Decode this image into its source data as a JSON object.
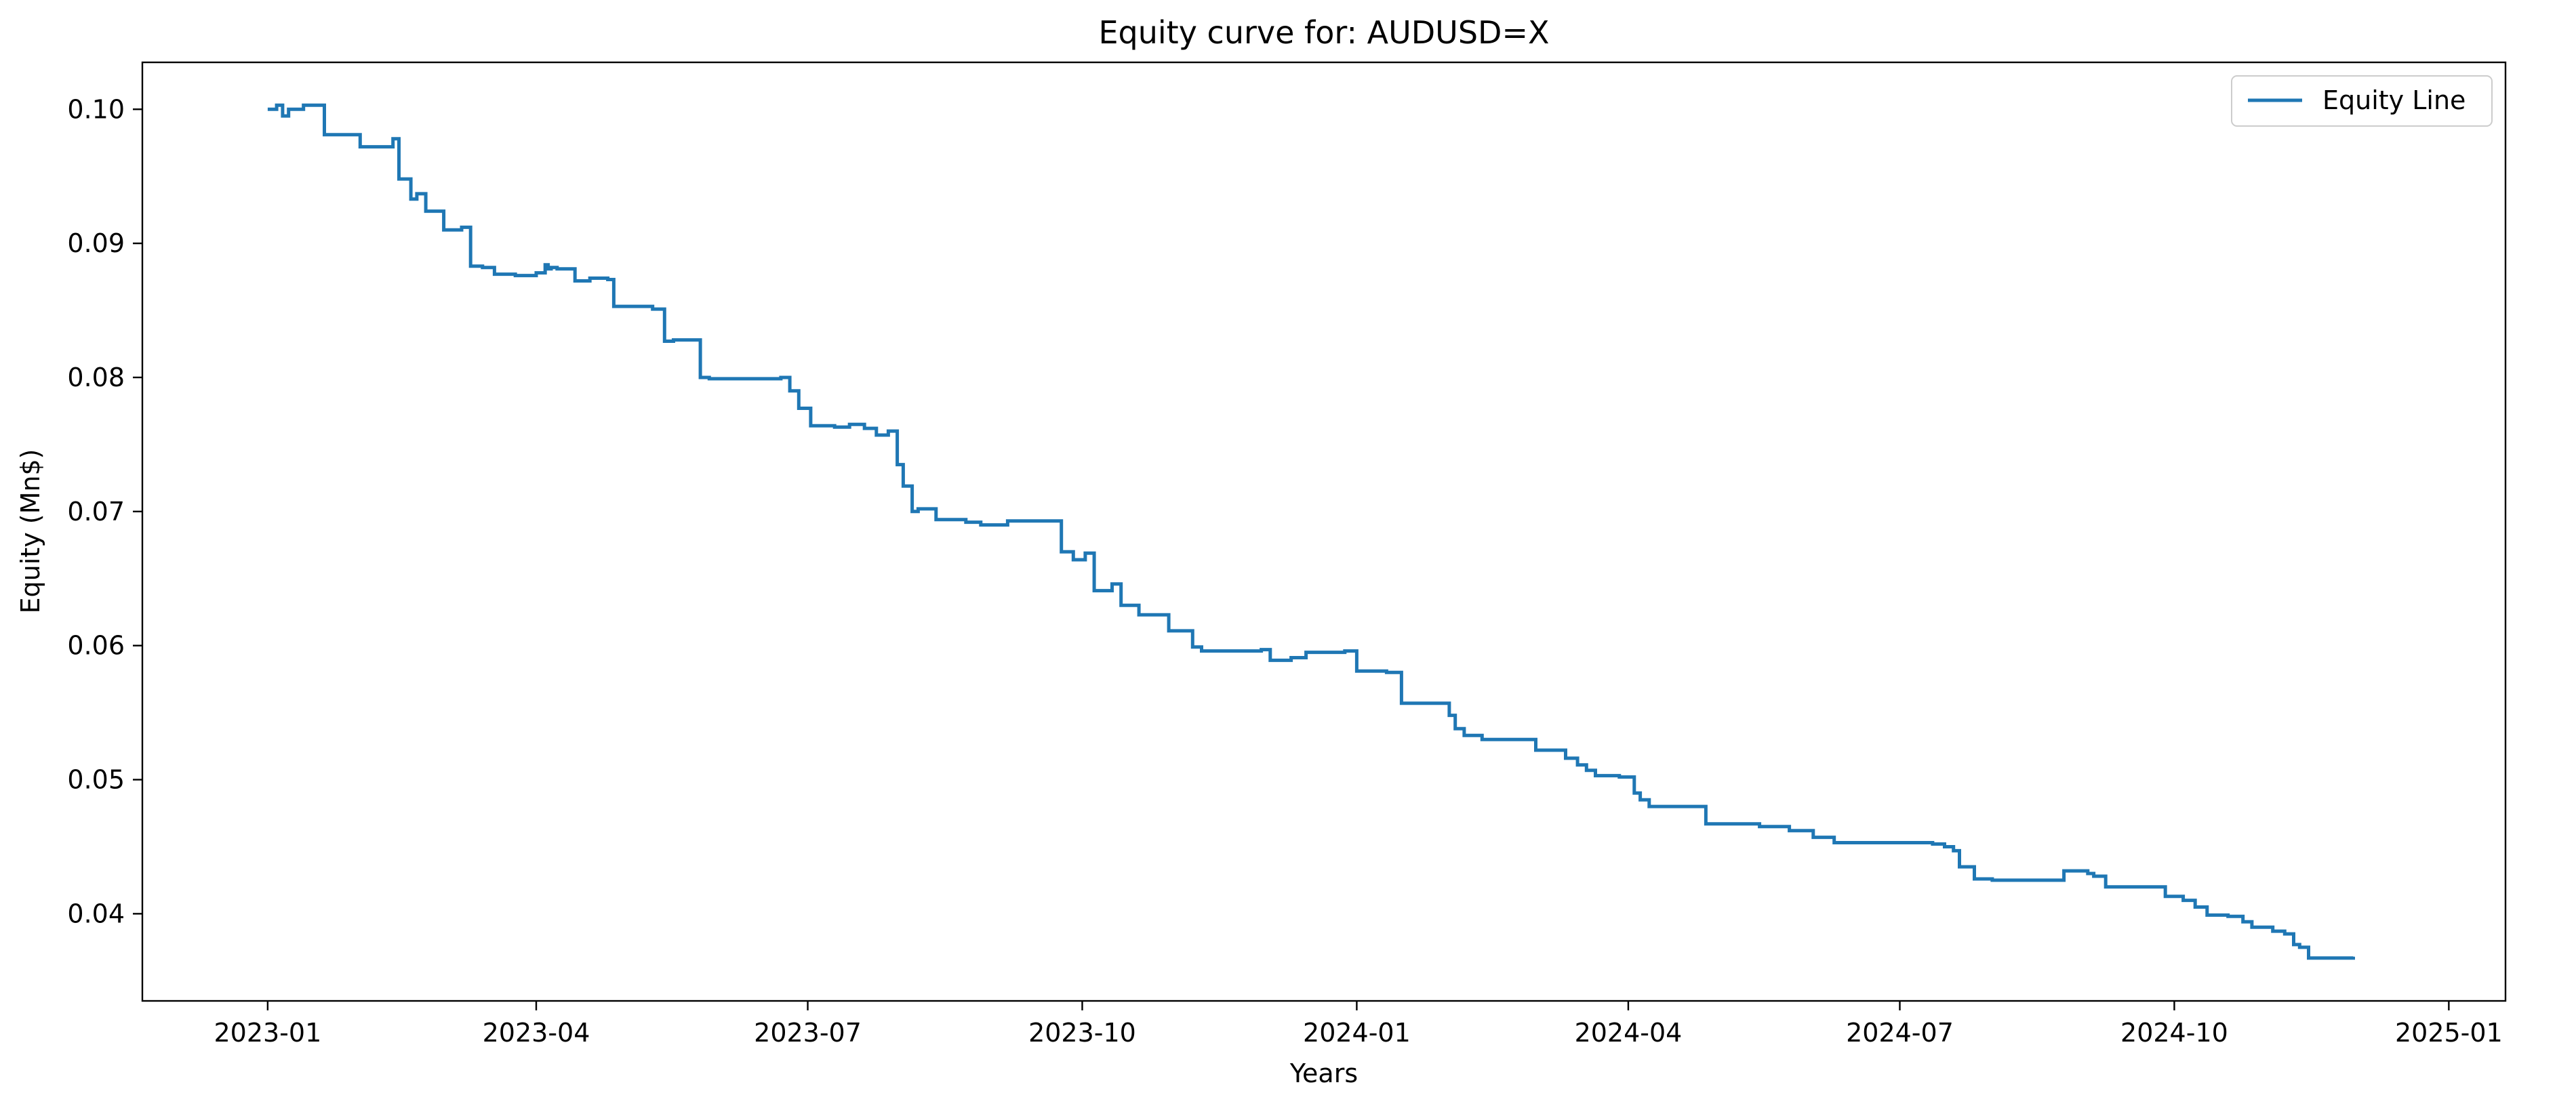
{
  "chart_data": {
    "type": "line",
    "title": "Equity curve for: AUDUSD=X",
    "xlabel": "Years",
    "ylabel": "Equity (Mn$)",
    "x_axis_type": "date",
    "xlim": [
      "2022-11-20",
      "2025-01-20"
    ],
    "ylim": [
      0.0335,
      0.1035
    ],
    "x_ticks": [
      {
        "date": "2023-01-01",
        "label": "2023-01"
      },
      {
        "date": "2023-04-01",
        "label": "2023-04"
      },
      {
        "date": "2023-07-01",
        "label": "2023-07"
      },
      {
        "date": "2023-10-01",
        "label": "2023-10"
      },
      {
        "date": "2024-01-01",
        "label": "2024-01"
      },
      {
        "date": "2024-04-01",
        "label": "2024-04"
      },
      {
        "date": "2024-07-01",
        "label": "2024-07"
      },
      {
        "date": "2024-10-01",
        "label": "2024-10"
      },
      {
        "date": "2025-01-01",
        "label": "2025-01"
      }
    ],
    "y_ticks": [
      {
        "value": 0.04,
        "label": "0.04"
      },
      {
        "value": 0.05,
        "label": "0.05"
      },
      {
        "value": 0.06,
        "label": "0.06"
      },
      {
        "value": 0.07,
        "label": "0.07"
      },
      {
        "value": 0.08,
        "label": "0.08"
      },
      {
        "value": 0.09,
        "label": "0.09"
      },
      {
        "value": 0.1,
        "label": "0.10"
      }
    ],
    "grid": false,
    "legend_position": "top-right",
    "series": [
      {
        "name": "Equity Line",
        "color": "#1f77b4",
        "step": true,
        "x": [
          "2023-01-01",
          "2023-01-04",
          "2023-01-06",
          "2023-01-08",
          "2023-01-11",
          "2023-01-13",
          "2023-01-20",
          "2023-02-01",
          "2023-02-12",
          "2023-02-14",
          "2023-02-18",
          "2023-02-20",
          "2023-02-23",
          "2023-03-01",
          "2023-03-07",
          "2023-03-10",
          "2023-03-14",
          "2023-03-18",
          "2023-03-25",
          "2023-04-01",
          "2023-04-04",
          "2023-04-05",
          "2023-04-06",
          "2023-04-08",
          "2023-04-14",
          "2023-04-19",
          "2023-04-25",
          "2023-04-27",
          "2023-05-10",
          "2023-05-14",
          "2023-05-17",
          "2023-05-26",
          "2023-05-29",
          "2023-06-22",
          "2023-06-25",
          "2023-06-28",
          "2023-07-02",
          "2023-07-10",
          "2023-07-15",
          "2023-07-20",
          "2023-07-24",
          "2023-07-28",
          "2023-07-31",
          "2023-08-02",
          "2023-08-05",
          "2023-08-07",
          "2023-08-13",
          "2023-08-23",
          "2023-08-28",
          "2023-09-06",
          "2023-09-24",
          "2023-09-28",
          "2023-10-02",
          "2023-10-05",
          "2023-10-11",
          "2023-10-14",
          "2023-10-20",
          "2023-10-30",
          "2023-11-07",
          "2023-11-10",
          "2023-11-30",
          "2023-12-03",
          "2023-12-10",
          "2023-12-15",
          "2023-12-28",
          "2024-01-01",
          "2024-01-11",
          "2024-01-16",
          "2024-01-21",
          "2024-02-01",
          "2024-02-03",
          "2024-02-06",
          "2024-02-12",
          "2024-03-01",
          "2024-03-11",
          "2024-03-15",
          "2024-03-18",
          "2024-03-21",
          "2024-03-29",
          "2024-04-03",
          "2024-04-05",
          "2024-04-08",
          "2024-04-20",
          "2024-04-27",
          "2024-05-15",
          "2024-05-25",
          "2024-06-02",
          "2024-06-09",
          "2024-07-12",
          "2024-07-16",
          "2024-07-19",
          "2024-07-21",
          "2024-07-26",
          "2024-08-01",
          "2024-08-25",
          "2024-09-02",
          "2024-09-04",
          "2024-09-08",
          "2024-09-28",
          "2024-10-01",
          "2024-10-04",
          "2024-10-08",
          "2024-10-12",
          "2024-10-19",
          "2024-10-24",
          "2024-10-27",
          "2024-11-03",
          "2024-11-07",
          "2024-11-10",
          "2024-11-12",
          "2024-11-15",
          "2024-11-30"
        ],
        "values": [
          0.1,
          0.1003,
          0.0995,
          0.1,
          0.1,
          0.1003,
          0.0981,
          0.0972,
          0.0978,
          0.0948,
          0.0933,
          0.0937,
          0.0924,
          0.091,
          0.0912,
          0.0883,
          0.0882,
          0.0877,
          0.0876,
          0.0878,
          0.0884,
          0.0881,
          0.0882,
          0.0881,
          0.0872,
          0.0874,
          0.0873,
          0.0853,
          0.0851,
          0.0827,
          0.0828,
          0.08,
          0.0799,
          0.08,
          0.079,
          0.0777,
          0.0764,
          0.0763,
          0.0765,
          0.0762,
          0.0757,
          0.076,
          0.0735,
          0.0719,
          0.07,
          0.0702,
          0.0694,
          0.0692,
          0.069,
          0.0693,
          0.067,
          0.0664,
          0.0669,
          0.0641,
          0.0646,
          0.063,
          0.0623,
          0.0611,
          0.0599,
          0.0596,
          0.0597,
          0.0589,
          0.0591,
          0.0595,
          0.0596,
          0.0581,
          0.058,
          0.0557,
          0.0557,
          0.0548,
          0.0538,
          0.0533,
          0.053,
          0.0522,
          0.0516,
          0.0511,
          0.0507,
          0.0503,
          0.0502,
          0.049,
          0.0485,
          0.048,
          0.048,
          0.0467,
          0.0465,
          0.0462,
          0.0457,
          0.0453,
          0.0452,
          0.045,
          0.0447,
          0.0435,
          0.0426,
          0.0425,
          0.0432,
          0.043,
          0.0428,
          0.042,
          0.0413,
          0.0413,
          0.041,
          0.0405,
          0.0399,
          0.0398,
          0.0394,
          0.039,
          0.0387,
          0.0385,
          0.0377,
          0.0375,
          0.0367,
          0.0368
        ]
      }
    ]
  }
}
